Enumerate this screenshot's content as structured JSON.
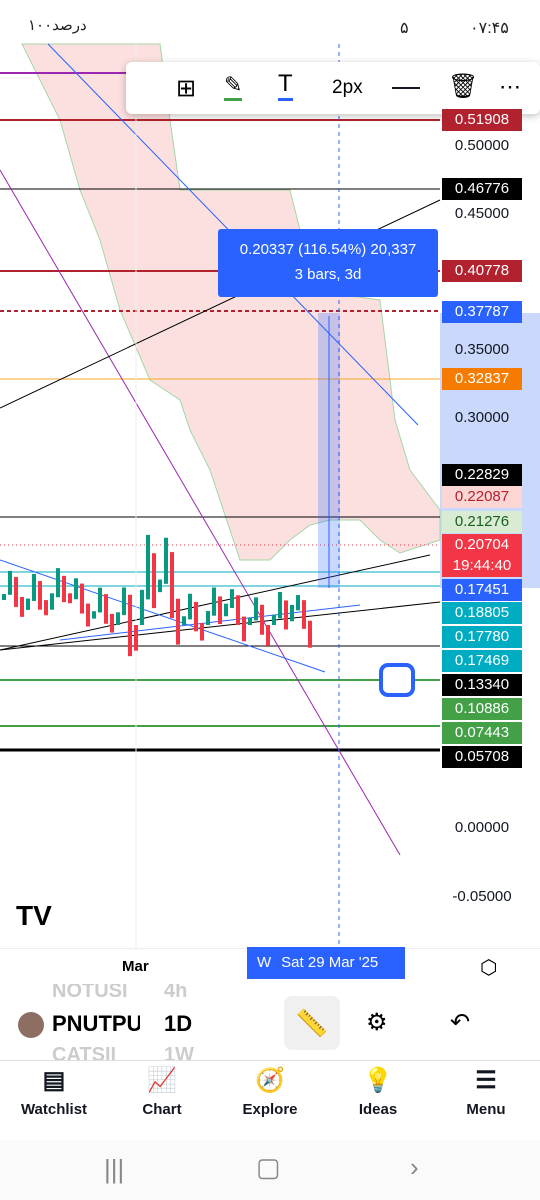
{
  "status_bar": {
    "time": "۰۷:۴۵",
    "notifications": "۵",
    "battery": "۱۰۰درصد"
  },
  "toolbar": {
    "stroke_width": "2px"
  },
  "measure": {
    "line1": "0.20337 (116.54%) 20,337",
    "line2": "3 bars, 3d"
  },
  "price_labels": [
    {
      "text": "0.51908",
      "bg": "#b2222e",
      "fg": "#fff"
    },
    {
      "text": "0.50000"
    },
    {
      "text": "0.46776",
      "bg": "#000",
      "fg": "#fff"
    },
    {
      "text": "0.45000"
    },
    {
      "text": "0.40778",
      "bg": "#b2222e",
      "fg": "#fff"
    },
    {
      "text": "0.37787",
      "bg": "#2962ff",
      "fg": "#fff"
    },
    {
      "text": "0.35000"
    },
    {
      "text": "0.32837",
      "bg": "#f57c00",
      "fg": "#fff"
    },
    {
      "text": "0.30000"
    },
    {
      "text": "0.22829",
      "bg": "#000",
      "fg": "#fff"
    },
    {
      "text": "0.22087",
      "bg": "#fcd5d5",
      "fg": "#b2222e"
    },
    {
      "text": "0.21276",
      "bg": "#d7ecd2",
      "fg": "#1b5e20"
    },
    {
      "text": "0.20704",
      "bg": "#f23645",
      "fg": "#fff"
    },
    {
      "text": "19:44:40",
      "bg": "#f23645",
      "fg": "#fff"
    },
    {
      "text": "0.17451",
      "bg": "#2962ff",
      "fg": "#fff"
    },
    {
      "text": "0.18805",
      "bg": "#00acc1",
      "fg": "#fff"
    },
    {
      "text": "0.17780",
      "bg": "#00acc1",
      "fg": "#fff"
    },
    {
      "text": "0.17469",
      "bg": "#00acc1",
      "fg": "#fff"
    },
    {
      "text": "0.13340",
      "bg": "#000",
      "fg": "#fff"
    },
    {
      "text": "0.10886",
      "bg": "#43a047",
      "fg": "#fff"
    },
    {
      "text": "0.07443",
      "bg": "#43a047",
      "fg": "#fff"
    },
    {
      "text": "0.05708",
      "bg": "#000",
      "fg": "#fff"
    },
    {
      "text": "0.00000"
    },
    {
      "text": "-0.05000"
    }
  ],
  "time_axis": {
    "month": "Mar",
    "cursor_prefix": "W",
    "cursor_date": "Sat 29 Mar '25"
  },
  "symbols": {
    "prev_symbol": "NOTUSI",
    "prev_interval": "4h",
    "symbol": "PNUTPU",
    "interval": "1D",
    "next_symbol": "CATSII",
    "next_interval": "1W"
  },
  "nav": [
    "Watchlist",
    "Chart",
    "Explore",
    "Ideas",
    "Menu"
  ]
}
